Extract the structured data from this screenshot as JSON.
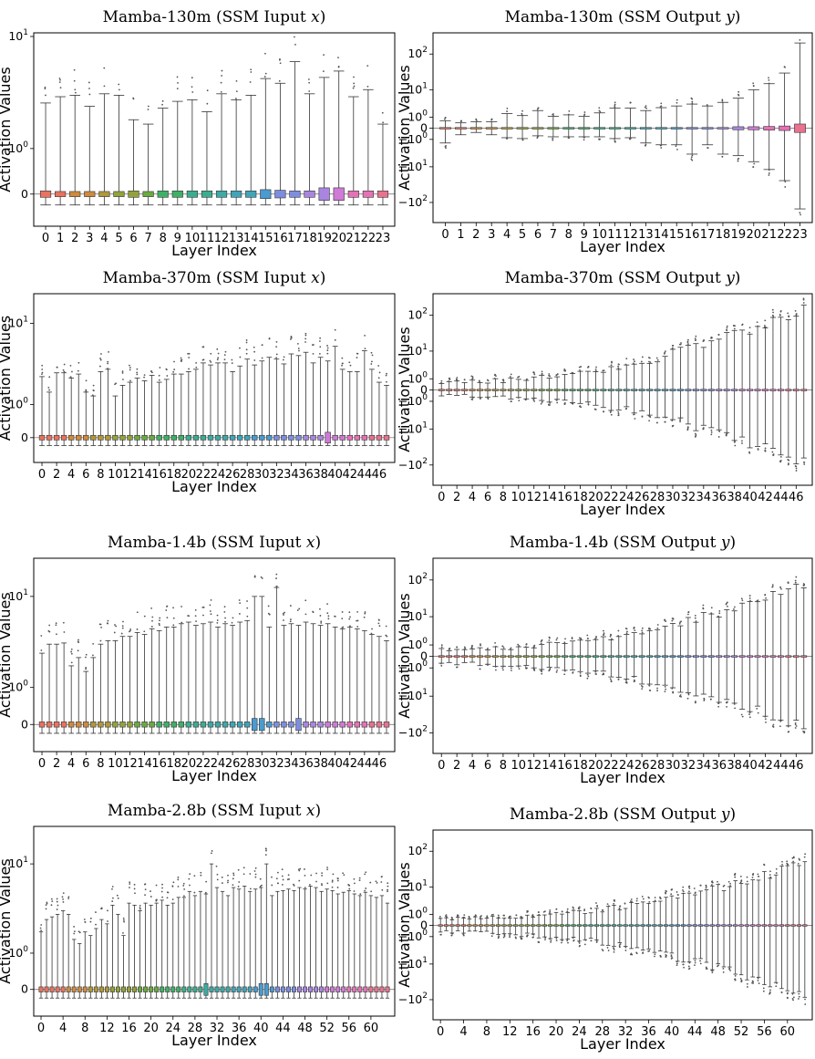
{
  "figure": {
    "xlabel": "Layer Index",
    "ylabel": "Activation Values",
    "palette": [
      "#e8735f",
      "#cf8a3e",
      "#b0983b",
      "#93a23b",
      "#6aab3f",
      "#3fb067",
      "#3bae8f",
      "#3ea9a5",
      "#41a4b8",
      "#4a9bd0",
      "#7d8ee0",
      "#a985e0",
      "#cf7ad6",
      "#e572b6",
      "#e8728f"
    ]
  },
  "chart_data": [
    {
      "type": "box",
      "title": "Mamba-130m (SSM Iuput x)",
      "title_prefix": "Mamba-130m (SSM Iuput ",
      "var": "x",
      "scale": "symlog",
      "num_layers": 24,
      "xtick_labels": [
        "0",
        "1",
        "2",
        "3",
        "4",
        "5",
        "6",
        "7",
        "8",
        "9",
        "10",
        "11",
        "12",
        "13",
        "14",
        "15",
        "16",
        "17",
        "18",
        "19",
        "20",
        "21",
        "22",
        "23"
      ],
      "ytick_labels": [
        "10^1",
        "10^0",
        "0"
      ],
      "ytick_values": [
        10,
        1,
        0
      ],
      "ylim": [
        -0.5,
        10
      ],
      "whisker_low": -0.18,
      "whisker_high": [
        3.0,
        3.4,
        3.5,
        2.8,
        3.6,
        3.5,
        2.1,
        1.9,
        2.7,
        3.1,
        3.2,
        2.5,
        3.6,
        3.2,
        3.5,
        4.8,
        4.4,
        6.5,
        3.6,
        4.9,
        5.5,
        3.4,
        3.9,
        1.9
      ],
      "box": [
        [
          -0.05,
          0.05
        ],
        [
          -0.04,
          0.04
        ],
        [
          -0.04,
          0.04
        ],
        [
          -0.04,
          0.04
        ],
        [
          -0.04,
          0.04
        ],
        [
          -0.04,
          0.04
        ],
        [
          -0.05,
          0.05
        ],
        [
          -0.04,
          0.04
        ],
        [
          -0.05,
          0.05
        ],
        [
          -0.05,
          0.05
        ],
        [
          -0.05,
          0.05
        ],
        [
          -0.05,
          0.05
        ],
        [
          -0.05,
          0.05
        ],
        [
          -0.05,
          0.05
        ],
        [
          -0.05,
          0.05
        ],
        [
          -0.07,
          0.07
        ],
        [
          -0.06,
          0.06
        ],
        [
          -0.05,
          0.05
        ],
        [
          -0.05,
          0.05
        ],
        [
          -0.1,
          0.1
        ],
        [
          -0.1,
          0.1
        ],
        [
          -0.05,
          0.05
        ],
        [
          -0.05,
          0.05
        ],
        [
          -0.05,
          0.05
        ]
      ]
    },
    {
      "type": "box",
      "title": "Mamba-130m (SSM Output y)",
      "title_prefix": "Mamba-130m (SSM Output ",
      "var": "y",
      "scale": "symlog",
      "num_layers": 24,
      "xtick_labels": [
        "0",
        "1",
        "2",
        "3",
        "4",
        "5",
        "6",
        "7",
        "8",
        "9",
        "10",
        "11",
        "12",
        "13",
        "14",
        "15",
        "16",
        "17",
        "18",
        "19",
        "20",
        "21",
        "22",
        "23"
      ],
      "ytick_labels": [
        "10^2",
        "10^1",
        "10^0",
        "0",
        "-10^0",
        "-10^1",
        "-10^2"
      ],
      "ytick_values": [
        100,
        10,
        1,
        0,
        -1,
        -10,
        -100
      ],
      "ylim": [
        -250,
        300
      ],
      "whisker_high": [
        0.6,
        0.4,
        0.5,
        0.5,
        1.5,
        1.2,
        2.0,
        1.1,
        1.3,
        1.1,
        1.6,
        2.5,
        2.5,
        2.0,
        2.6,
        3.0,
        3.5,
        3.0,
        4.0,
        5.5,
        10,
        15,
        30,
        200
      ],
      "whisker_low": [
        -1.5,
        -0.5,
        -0.3,
        -0.5,
        -0.8,
        -0.9,
        -0.6,
        -0.7,
        -0.7,
        -0.7,
        -0.7,
        -0.9,
        -0.8,
        -1.5,
        -1.8,
        -1.8,
        -4.0,
        -1.8,
        -4.0,
        -4.5,
        -7,
        -12,
        -25,
        -150
      ],
      "box": [
        [
          -0.05,
          0.05
        ],
        [
          -0.05,
          0.05
        ],
        [
          -0.05,
          0.05
        ],
        [
          -0.05,
          0.05
        ],
        [
          -0.05,
          0.05
        ],
        [
          -0.05,
          0.05
        ],
        [
          -0.05,
          0.05
        ],
        [
          -0.05,
          0.05
        ],
        [
          -0.05,
          0.05
        ],
        [
          -0.05,
          0.05
        ],
        [
          -0.05,
          0.05
        ],
        [
          -0.05,
          0.05
        ],
        [
          -0.05,
          0.05
        ],
        [
          -0.05,
          0.05
        ],
        [
          -0.05,
          0.05
        ],
        [
          -0.05,
          0.05
        ],
        [
          -0.05,
          0.05
        ],
        [
          -0.05,
          0.05
        ],
        [
          -0.05,
          0.05
        ],
        [
          -0.1,
          0.1
        ],
        [
          -0.1,
          0.1
        ],
        [
          -0.12,
          0.12
        ],
        [
          -0.15,
          0.15
        ],
        [
          -0.3,
          0.3
        ]
      ]
    },
    {
      "type": "box",
      "title": "Mamba-370m (SSM Iuput x)",
      "title_prefix": "Mamba-370m (SSM Iuput ",
      "var": "x",
      "scale": "symlog",
      "num_layers": 48,
      "xtick_labels": [
        "0",
        "2",
        "4",
        "6",
        "8",
        "10",
        "12",
        "14",
        "16",
        "18",
        "20",
        "22",
        "24",
        "26",
        "28",
        "30",
        "32",
        "34",
        "36",
        "38",
        "40",
        "42",
        "44",
        "46"
      ],
      "ytick_labels": [
        "10^1",
        "10^0",
        "0"
      ],
      "ytick_values": [
        10,
        1,
        0
      ],
      "ylim": [
        -0.5,
        18
      ],
      "whisker_low": -0.18,
      "whisker_high": [
        2.6,
        1.6,
        2.9,
        2.9,
        2.5,
        2.8,
        1.6,
        1.4,
        3.0,
        3.2,
        1.4,
        2.0,
        2.2,
        2.5,
        2.3,
        2.7,
        2.2,
        2.4,
        2.8,
        2.8,
        3.0,
        3.2,
        3.8,
        3.6,
        3.8,
        3.8,
        3.0,
        3.5,
        4.2,
        3.6,
        4.0,
        4.4,
        4.2,
        3.7,
        4.8,
        4.6,
        5.0,
        3.8,
        4.4,
        4.0,
        5.8,
        3.2,
        3.0,
        3.0,
        5.2,
        3.2,
        2.2,
        2.0
      ],
      "box_halfwidth": 0.05,
      "wide_box_layers": [
        39
      ]
    },
    {
      "type": "box",
      "title": "Mamba-370m (SSM Output y)",
      "title_prefix": "Mamba-370m (SSM Output ",
      "var": "y",
      "scale": "symlog",
      "num_layers": 48,
      "xtick_labels": [
        "0",
        "2",
        "4",
        "6",
        "8",
        "10",
        "12",
        "14",
        "16",
        "18",
        "20",
        "22",
        "24",
        "26",
        "28",
        "30",
        "32",
        "34",
        "36",
        "38",
        "40",
        "42",
        "44",
        "46"
      ],
      "ytick_labels": [
        "10^2",
        "10^1",
        "10^0",
        "0",
        "-10^0",
        "-10^1",
        "-10^2"
      ],
      "ytick_values": [
        100,
        10,
        1,
        0,
        -1,
        -10,
        -100
      ],
      "ylim": [
        -250,
        300
      ],
      "whisker_high_range": [
        0.6,
        150
      ],
      "whisker_low_range": [
        -0.4,
        -90
      ],
      "box_halfwidth": 0.05
    },
    {
      "type": "box",
      "title": "Mamba-1.4b (SSM Iuput x)",
      "title_prefix": "Mamba-1.4b (SSM Iuput ",
      "var": "x",
      "scale": "symlog",
      "num_layers": 48,
      "xtick_labels": [
        "0",
        "2",
        "4",
        "6",
        "8",
        "10",
        "12",
        "14",
        "16",
        "18",
        "20",
        "22",
        "24",
        "26",
        "28",
        "30",
        "32",
        "34",
        "36",
        "38",
        "40",
        "42",
        "44",
        "46"
      ],
      "ytick_labels": [
        "10^1",
        "10^0",
        "0"
      ],
      "ytick_values": [
        10,
        1,
        0
      ],
      "ylim": [
        -0.5,
        20
      ],
      "whisker_low": -0.18,
      "whisker_high": [
        2.8,
        3.5,
        3.5,
        3.6,
        2.0,
        2.5,
        1.7,
        2.5,
        3.5,
        3.8,
        3.8,
        4.2,
        4.2,
        4.6,
        4.4,
        5.0,
        4.8,
        5.2,
        5.2,
        5.6,
        5.8,
        5.4,
        5.6,
        5.8,
        5.2,
        5.6,
        5.4,
        5.8,
        6.0,
        10,
        10,
        5.2,
        12,
        5.4,
        5.6,
        5.4,
        5.8,
        5.6,
        5.4,
        5.6,
        5.2,
        5.0,
        5.2,
        5.0,
        4.8,
        4.4,
        4.2,
        3.8
      ],
      "box_halfwidth": 0.05,
      "wide_box_layers": [
        29,
        30,
        35
      ]
    },
    {
      "type": "box",
      "title": "Mamba-1.4b (SSM Output y)",
      "title_prefix": "Mamba-1.4b (SSM Output ",
      "var": "y",
      "scale": "symlog",
      "num_layers": 48,
      "xtick_labels": [
        "0",
        "2",
        "4",
        "6",
        "8",
        "10",
        "12",
        "14",
        "16",
        "18",
        "20",
        "22",
        "24",
        "26",
        "28",
        "30",
        "32",
        "34",
        "36",
        "38",
        "40",
        "42",
        "44",
        "46"
      ],
      "ytick_labels": [
        "10^2",
        "10^1",
        "10^0",
        "0",
        "-10^0",
        "-10^1",
        "-10^2"
      ],
      "ytick_values": [
        100,
        10,
        1,
        0,
        -1,
        -10,
        -100
      ],
      "ylim": [
        -250,
        300
      ],
      "whisker_high_range": [
        0.5,
        80
      ],
      "whisker_low_range": [
        -0.5,
        -70
      ],
      "box_halfwidth": 0.05
    },
    {
      "type": "box",
      "title": "Mamba-2.8b (SSM Iuput x)",
      "title_prefix": "Mamba-2.8b (SSM Iuput ",
      "var": "x",
      "scale": "symlog",
      "num_layers": 64,
      "xtick_labels": [
        "0",
        "4",
        "8",
        "12",
        "16",
        "20",
        "24",
        "28",
        "32",
        "36",
        "40",
        "44",
        "48",
        "52",
        "56",
        "60"
      ],
      "ytick_labels": [
        "10^1",
        "10^0",
        "0"
      ],
      "ytick_values": [
        10,
        1,
        0
      ],
      "ylim": [
        -0.5,
        20
      ],
      "whisker_low": -0.18,
      "whisker_high": [
        2.0,
        2.8,
        3.0,
        3.2,
        3.5,
        3.2,
        1.6,
        1.4,
        2.0,
        1.8,
        2.2,
        2.8,
        2.5,
        4.0,
        3.2,
        1.8,
        4.2,
        4.0,
        3.5,
        4.2,
        4.0,
        4.2,
        4.5,
        4.0,
        4.2,
        4.8,
        4.8,
        5.5,
        5.0,
        5.5,
        5.2,
        10,
        6.0,
        5.5,
        5.0,
        6.0,
        5.8,
        6.2,
        5.5,
        5.8,
        6.0,
        10,
        5.0,
        5.5,
        5.6,
        5.8,
        5.6,
        6.0,
        5.8,
        6.2,
        6.0,
        5.5,
        5.8,
        5.6,
        5.2,
        5.4,
        5.6,
        5.2,
        5.0,
        5.4,
        5.0,
        4.8,
        5.0,
        4.2
      ],
      "box_halfwidth": 0.05,
      "wide_box_layers": [
        30,
        40,
        41
      ]
    },
    {
      "type": "box",
      "title": "Mamba-2.8b (SSM Output y)",
      "title_prefix": "Mamba-2.8b (SSM Output ",
      "var": "y",
      "scale": "symlog",
      "num_layers": 64,
      "xtick_labels": [
        "0",
        "4",
        "8",
        "12",
        "16",
        "20",
        "24",
        "28",
        "32",
        "36",
        "40",
        "44",
        "48",
        "52",
        "56",
        "60"
      ],
      "ytick_labels": [
        "10^2",
        "10^1",
        "10^0",
        "0",
        "-10^0",
        "-10^1",
        "-10^2"
      ],
      "ytick_values": [
        100,
        10,
        1,
        0,
        -1,
        -10,
        -100
      ],
      "ylim": [
        -250,
        300
      ],
      "whisker_high_range": [
        0.5,
        50
      ],
      "whisker_low_range": [
        -0.5,
        -80
      ],
      "box_halfwidth": 0.05
    }
  ]
}
